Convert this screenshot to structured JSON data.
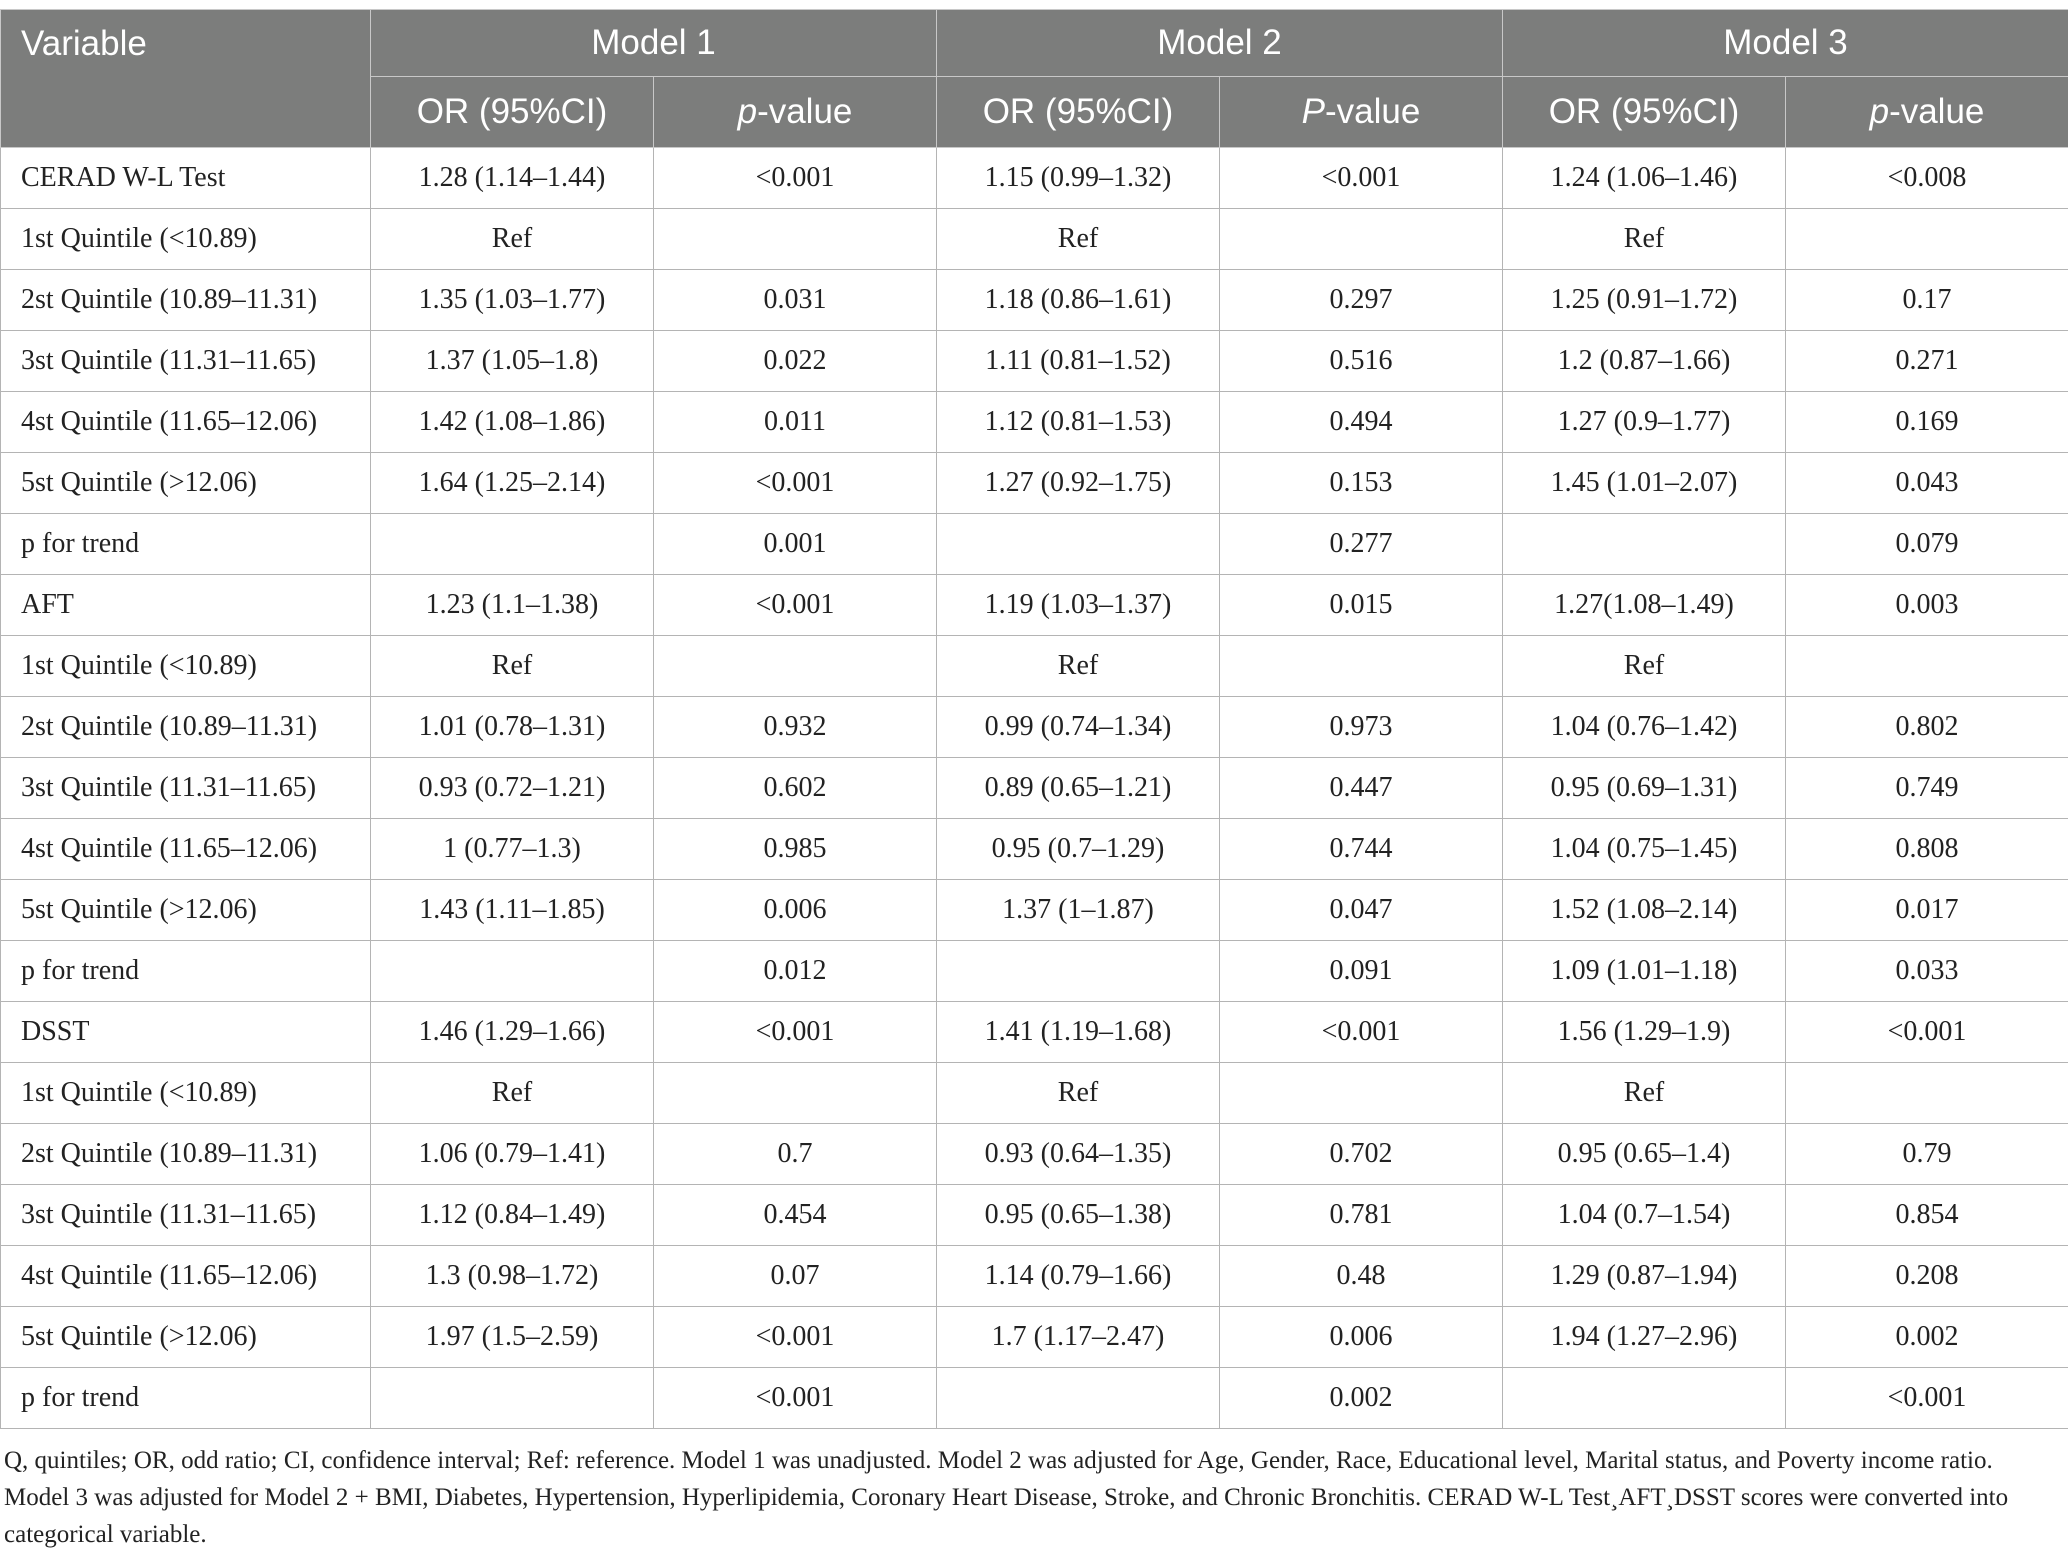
{
  "header": {
    "variable": "Variable",
    "models": [
      "Model 1",
      "Model 2",
      "Model 3"
    ],
    "sub": [
      {
        "or": "OR (95%CI)",
        "p_letter": "p",
        "p_rest": "-value"
      },
      {
        "or": "OR (95%CI)",
        "p_letter": "P",
        "p_rest": "-value"
      },
      {
        "or": "OR (95%CI)",
        "p_letter": "p",
        "p_rest": "-value"
      }
    ]
  },
  "rows": [
    {
      "label": "CERAD W-L Test",
      "cells": [
        "1.28 (1.14–1.44)",
        "<0.001",
        "1.15 (0.99–1.32)",
        "<0.001",
        "1.24 (1.06–1.46)",
        "<0.008"
      ]
    },
    {
      "label": "1st Quintile (<10.89)",
      "cells": [
        "Ref",
        "",
        "Ref",
        "",
        "Ref",
        ""
      ]
    },
    {
      "label": "2st Quintile (10.89–11.31)",
      "cells": [
        "1.35 (1.03–1.77)",
        "0.031",
        "1.18 (0.86–1.61)",
        "0.297",
        "1.25 (0.91–1.72)",
        "0.17"
      ]
    },
    {
      "label": "3st Quintile (11.31–11.65)",
      "cells": [
        "1.37 (1.05–1.8)",
        "0.022",
        "1.11 (0.81–1.52)",
        "0.516",
        "1.2 (0.87–1.66)",
        "0.271"
      ]
    },
    {
      "label": "4st Quintile (11.65–12.06)",
      "cells": [
        "1.42 (1.08–1.86)",
        "0.011",
        "1.12 (0.81–1.53)",
        "0.494",
        "1.27 (0.9–1.77)",
        "0.169"
      ]
    },
    {
      "label": "5st Quintile (>12.06)",
      "cells": [
        "1.64 (1.25–2.14)",
        "<0.001",
        "1.27 (0.92–1.75)",
        "0.153",
        "1.45 (1.01–2.07)",
        "0.043"
      ]
    },
    {
      "label": "p for trend",
      "cells": [
        "",
        "0.001",
        "",
        "0.277",
        "",
        "0.079"
      ]
    },
    {
      "label": "AFT",
      "cells": [
        "1.23 (1.1–1.38)",
        "<0.001",
        "1.19 (1.03–1.37)",
        "0.015",
        "1.27(1.08–1.49)",
        "0.003"
      ]
    },
    {
      "label": "1st Quintile (<10.89)",
      "cells": [
        "Ref",
        "",
        "Ref",
        "",
        "Ref",
        ""
      ]
    },
    {
      "label": "2st Quintile (10.89–11.31)",
      "cells": [
        "1.01 (0.78–1.31)",
        "0.932",
        "0.99 (0.74–1.34)",
        "0.973",
        "1.04 (0.76–1.42)",
        "0.802"
      ]
    },
    {
      "label": "3st Quintile (11.31–11.65)",
      "cells": [
        "0.93 (0.72–1.21)",
        "0.602",
        "0.89 (0.65–1.21)",
        "0.447",
        "0.95 (0.69–1.31)",
        "0.749"
      ]
    },
    {
      "label": "4st Quintile (11.65–12.06)",
      "cells": [
        "1 (0.77–1.3)",
        "0.985",
        "0.95 (0.7–1.29)",
        "0.744",
        "1.04 (0.75–1.45)",
        "0.808"
      ]
    },
    {
      "label": "5st Quintile (>12.06)",
      "cells": [
        "1.43 (1.11–1.85)",
        "0.006",
        "1.37 (1–1.87)",
        "0.047",
        "1.52 (1.08–2.14)",
        "0.017"
      ]
    },
    {
      "label": "p for trend",
      "cells": [
        "",
        "0.012",
        "",
        "0.091",
        "1.09 (1.01–1.18)",
        "0.033"
      ]
    },
    {
      "label": "DSST",
      "cells": [
        "1.46 (1.29–1.66)",
        "<0.001",
        "1.41 (1.19–1.68)",
        "<0.001",
        "1.56 (1.29–1.9)",
        "<0.001"
      ]
    },
    {
      "label": "1st Quintile (<10.89)",
      "cells": [
        "Ref",
        "",
        "Ref",
        "",
        "Ref",
        ""
      ]
    },
    {
      "label": "2st Quintile (10.89–11.31)",
      "cells": [
        "1.06 (0.79–1.41)",
        "0.7",
        "0.93 (0.64–1.35)",
        "0.702",
        "0.95 (0.65–1.4)",
        "0.79"
      ]
    },
    {
      "label": "3st Quintile (11.31–11.65)",
      "cells": [
        "1.12 (0.84–1.49)",
        "0.454",
        "0.95 (0.65–1.38)",
        "0.781",
        "1.04 (0.7–1.54)",
        "0.854"
      ]
    },
    {
      "label": "4st Quintile (11.65–12.06)",
      "cells": [
        "1.3 (0.98–1.72)",
        "0.07",
        "1.14 (0.79–1.66)",
        "0.48",
        "1.29 (0.87–1.94)",
        "0.208"
      ]
    },
    {
      "label": "5st Quintile (>12.06)",
      "cells": [
        "1.97 (1.5–2.59)",
        "<0.001",
        "1.7 (1.17–2.47)",
        "0.006",
        "1.94 (1.27–2.96)",
        "0.002"
      ]
    },
    {
      "label": "p for trend",
      "cells": [
        "",
        "<0.001",
        "",
        "0.002",
        "",
        "<0.001"
      ]
    }
  ],
  "footnote": "Q, quintiles; OR, odd ratio; CI, confidence interval; Ref: reference. Model 1 was unadjusted. Model 2 was adjusted for Age, Gender, Race, Educational level, Marital status, and Poverty income ratio. Model 3 was adjusted for Model 2 + BMI, Diabetes, Hypertension, Hyperlipidemia, Coronary Heart Disease, Stroke, and Chronic Bronchitis. CERAD W-L Test¸AFT¸DSST scores were converted into categorical variable."
}
